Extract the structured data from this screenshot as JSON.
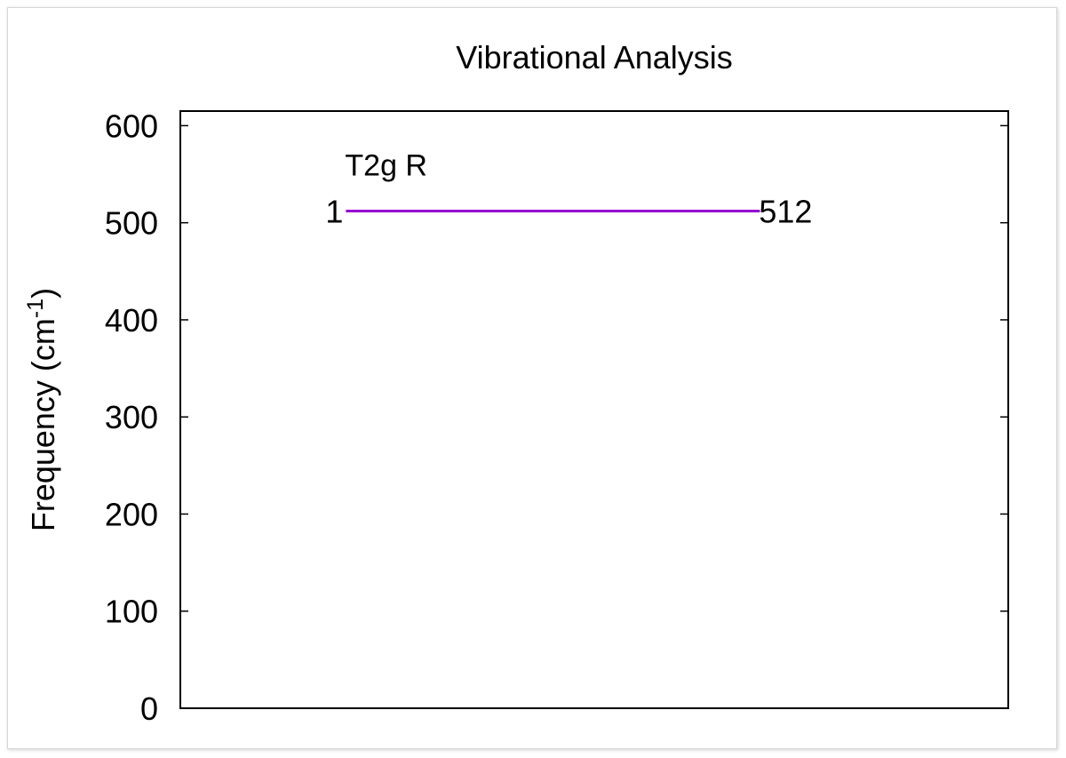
{
  "chart_data": {
    "type": "line",
    "title": "Vibrational Analysis",
    "ylabel_main": "Frequency (cm",
    "ylabel_sup": "-1",
    "ylabel_close": ")",
    "xlabel": "",
    "ylim": [
      0,
      615
    ],
    "yticks": [
      0,
      100,
      200,
      300,
      400,
      500,
      600
    ],
    "grid": false,
    "levels": [
      {
        "x_start": 0.2,
        "x_end": 0.7,
        "value": 512,
        "left_label": "1",
        "right_label": "512",
        "annotation": "T2g R",
        "color": "#9400d3"
      }
    ]
  }
}
